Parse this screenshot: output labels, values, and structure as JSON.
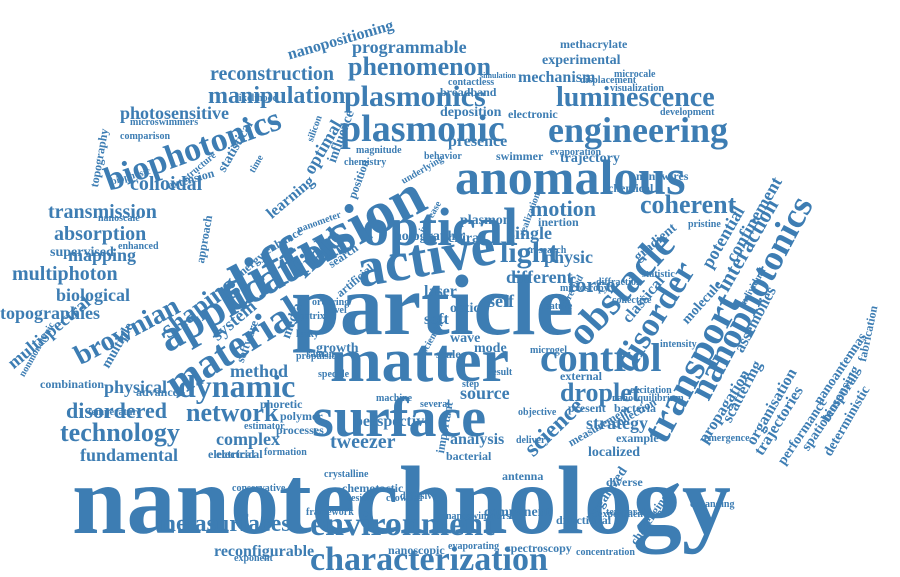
{
  "color": "#3d7db3",
  "words": [
    "nanotechnology",
    "particle",
    "matter",
    "surface",
    "optical",
    "active",
    "diffusion",
    "anomalous",
    "application",
    "material",
    "control",
    "obstacle",
    "transport",
    "nanophotonics",
    "disorder",
    "plasmonic",
    "engineering",
    "plasmonics",
    "luminescence",
    "biophotonics",
    "dynamic",
    "environment",
    "characterization",
    "metasurfaces",
    "droplet",
    "network",
    "technology",
    "brownian",
    "shaping",
    "field",
    "light",
    "motion",
    "coherent",
    "phenomenon",
    "manipulation",
    "reconstruction",
    "programmable",
    "nanopositioning",
    "photosensitive",
    "colloidal",
    "transmission",
    "absorption",
    "multiphoton",
    "topographies",
    "biological",
    "multispectral",
    "disordered",
    "physical",
    "system",
    "method",
    "complex",
    "tweezer",
    "analysis",
    "science",
    "strategy",
    "force",
    "single",
    "physic",
    "interaction",
    "potential",
    "confinement",
    "classical",
    "molecule",
    "assemblies",
    "scattering",
    "propagation",
    "trajectories",
    "organisation",
    "nanoantennas",
    "biosensing",
    "spatiotemporal",
    "performance",
    "deterministic",
    "fabrication",
    "reconfigurable",
    "fundamental",
    "electrical",
    "presence",
    "deposition",
    "broadband",
    "mechanism",
    "experimental",
    "methacrylate",
    "electronic",
    "development",
    "visualization",
    "trajectory",
    "evaporation",
    "nanowires",
    "chemical",
    "inertion",
    "chiral",
    "plasmon",
    "laser",
    "source",
    "result",
    "mode",
    "growth",
    "media",
    "scale",
    "organized",
    "challenging",
    "component",
    "directional",
    "spectroscopy",
    "concentration",
    "nanoscopic",
    "evaporating",
    "chemotactic",
    "framework",
    "conservative",
    "electrical",
    "localized",
    "bacterial",
    "antenna",
    "external",
    "present",
    "bacteria",
    "example",
    "mapping",
    "supervised",
    "statistical",
    "extension",
    "biophysic",
    "structure",
    "learning",
    "optimal",
    "influence",
    "enhance",
    "energy",
    "approach",
    "microswimmers",
    "comparison",
    "topography",
    "combination",
    "temperature",
    "advanced",
    "phoretic",
    "polymer",
    "estimator",
    "processes",
    "software",
    "multiple",
    "nonmonotonic",
    "soft",
    "wave",
    "optic",
    "self",
    "different",
    "gradient",
    "swimmer",
    "contactless",
    "simulation",
    "microcale",
    "displacement",
    "perspective",
    "statistic",
    "pristine",
    "individual",
    "emergence",
    "collection",
    "temporal",
    "measurement",
    "exponent",
    "nanoswimmers",
    "important",
    "diffusive",
    "ordering",
    "holographic",
    "search",
    "matrix",
    "artificial",
    "novel",
    "leaky",
    "raman",
    "speckle",
    "vesicle",
    "crowded",
    "formation",
    "scientific",
    "step",
    "several",
    "delivery",
    "objective",
    "position",
    "diverse",
    "experiment",
    "expanding",
    "nanoequilibrium",
    "excitation",
    "research",
    "silicon",
    "magnitude",
    "chemistry",
    "behavior",
    "nanometer",
    "increase",
    "time",
    "nanoscale",
    "enhanced",
    "likelihood",
    "underlying",
    "crystalline",
    "realization",
    "directed",
    "diffraction",
    "collective",
    "intensity",
    "propulsion",
    "microgel",
    "machine",
    "microscopy",
    "feature",
    "tracking",
    "nanoparticle"
  ]
}
